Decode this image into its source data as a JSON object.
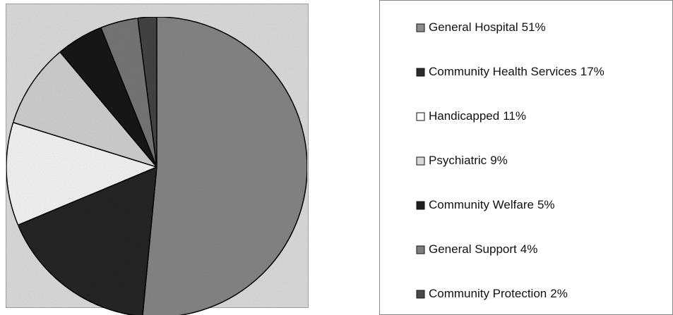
{
  "chart_data": {
    "type": "pie",
    "categories": [
      "General Hospital",
      "Community Health Services",
      "Handicapped",
      "Psychiatric",
      "Community Welfare",
      "General Support",
      "Community Protection"
    ],
    "values": [
      51,
      17,
      11,
      9,
      5,
      4,
      2
    ],
    "value_labels": [
      "51%",
      "17%",
      "11%",
      "9%",
      "5%",
      "4%",
      "2%"
    ],
    "colors": [
      "#8c8c8c",
      "#2b2b2b",
      "#ffffff",
      "#d9d9d9",
      "#1f1f1f",
      "#7d7d7d",
      "#4a4a4a"
    ],
    "legend": "right"
  }
}
